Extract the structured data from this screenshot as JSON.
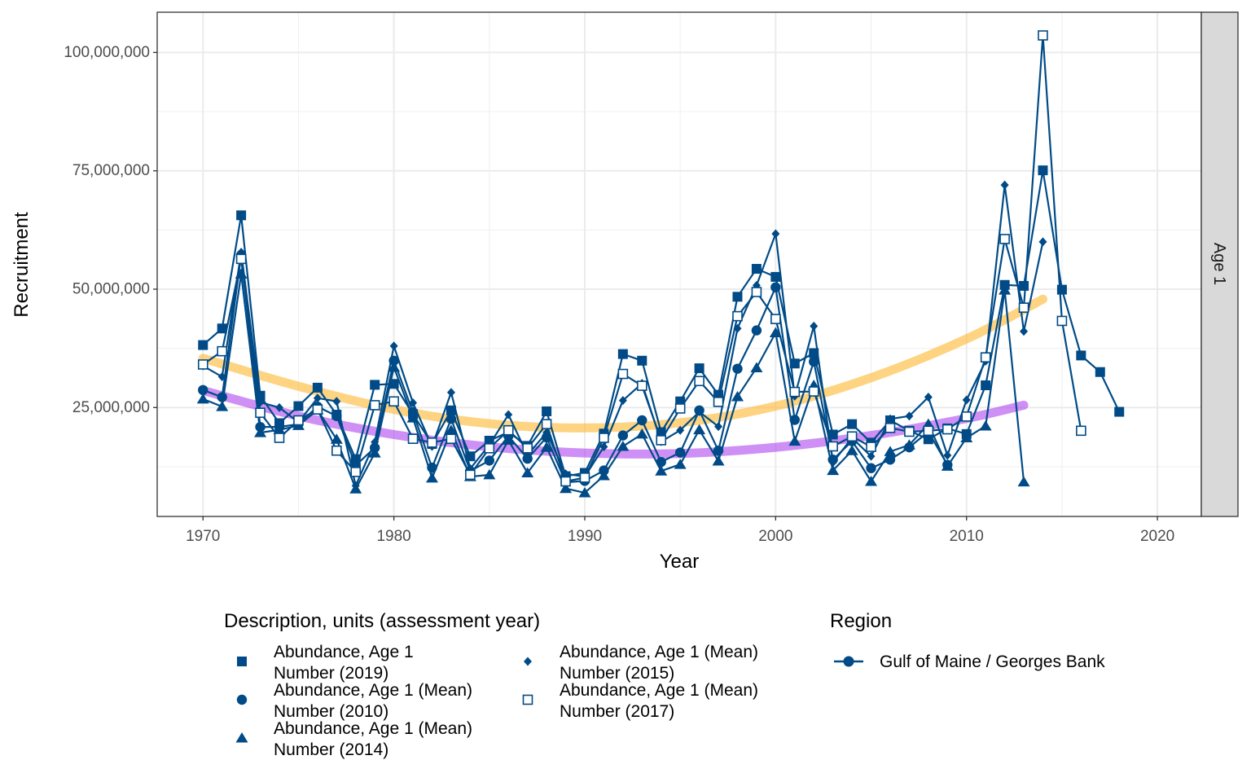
{
  "chart_data": {
    "type": "line",
    "xlabel": "Year",
    "ylabel": "Recruitment",
    "facet_label": "Age 1",
    "xlim": [
      1967.6,
      2022.3
    ],
    "ylim": [
      2000000,
      108500000
    ],
    "x_ticks": [
      1970,
      1980,
      1990,
      2000,
      2010,
      2020
    ],
    "x_tick_labels": [
      "1970",
      "1980",
      "1990",
      "2000",
      "2010",
      "2020"
    ],
    "y_ticks": [
      25000000,
      50000000,
      75000000,
      100000000
    ],
    "y_tick_labels": [
      "25,000,000",
      "50,000,000",
      "75,000,000",
      "100,000,000"
    ],
    "grid": true,
    "line_color": "#004B87",
    "series": [
      {
        "name": "Abundance, Age 1 Number (2019)",
        "marker": "square-filled",
        "x": [
          1970,
          1971,
          1972,
          1973,
          1974,
          1975,
          1976,
          1977,
          1978,
          1979,
          1980,
          1981,
          1982,
          1983,
          1984,
          1985,
          1986,
          1987,
          1988,
          1989,
          1990,
          1991,
          1992,
          1993,
          1994,
          1995,
          1996,
          1997,
          1998,
          1999,
          2000,
          2001,
          2002,
          2003,
          2004,
          2005,
          2006,
          2007,
          2008,
          2009,
          2010,
          2011,
          2012,
          2013,
          2014,
          2015,
          2016,
          2017,
          2018
        ],
        "y": [
          38200000,
          41700000,
          65600000,
          27500000,
          21700000,
          25300000,
          29200000,
          23500000,
          14100000,
          29800000,
          30000000,
          23600000,
          17300000,
          24400000,
          14700000,
          18000000,
          19800000,
          16900000,
          24200000,
          10500000,
          11200000,
          19500000,
          36300000,
          34900000,
          19800000,
          26300000,
          33300000,
          27700000,
          48400000,
          54300000,
          52600000,
          34300000,
          36500000,
          19300000,
          21500000,
          17600000,
          22300000,
          20100000,
          18300000,
          20600000,
          19400000,
          29700000,
          50900000,
          50700000,
          75100000,
          49900000,
          36000000,
          32500000,
          24100000
        ]
      },
      {
        "name": "Abundance, Age 1 (Mean) Number (2010)",
        "marker": "circle-filled",
        "x": [
          1970,
          1971,
          1972,
          1973,
          1974,
          1975,
          1976,
          1977,
          1978,
          1979,
          1980,
          1981,
          1982,
          1983,
          1984,
          1985,
          1986,
          1987,
          1988,
          1989,
          1990,
          1991,
          1992,
          1993,
          1994,
          1995,
          1996,
          1997,
          1998,
          1999,
          2000,
          2001,
          2002,
          2003,
          2004,
          2005,
          2006,
          2007,
          2008,
          2009
        ],
        "y": [
          28700000,
          27200000,
          57200000,
          20900000,
          20900000,
          21500000,
          25200000,
          23200000,
          12800000,
          16500000,
          34900000,
          24000000,
          12300000,
          22600000,
          11600000,
          13800000,
          19000000,
          14200000,
          18700000,
          9200000,
          9500000,
          11700000,
          19100000,
          22300000,
          13500000,
          15500000,
          24400000,
          15900000,
          33200000,
          41300000,
          50400000,
          22400000,
          34700000,
          14000000,
          17900000,
          12200000,
          14000000,
          16600000,
          19900000,
          12900000
        ]
      },
      {
        "name": "Abundance, Age 1 (Mean) Number (2014)",
        "marker": "triangle-filled",
        "x": [
          1970,
          1971,
          1972,
          1973,
          1974,
          1975,
          1976,
          1977,
          1978,
          1979,
          1980,
          1981,
          1982,
          1983,
          1984,
          1985,
          1986,
          1987,
          1988,
          1989,
          1990,
          1991,
          1992,
          1993,
          1994,
          1995,
          1996,
          1997,
          1998,
          1999,
          2000,
          2001,
          2002,
          2003,
          2004,
          2005,
          2006,
          2007,
          2008,
          2009,
          2010,
          2011,
          2012,
          2013
        ],
        "y": [
          26800000,
          25200000,
          53200000,
          19700000,
          20300000,
          21200000,
          24500000,
          18300000,
          7800000,
          15400000,
          33500000,
          22800000,
          10100000,
          20200000,
          10400000,
          10800000,
          18100000,
          11200000,
          16600000,
          7900000,
          7000000,
          10600000,
          16800000,
          19400000,
          11600000,
          13000000,
          20300000,
          13700000,
          27300000,
          33400000,
          40800000,
          17900000,
          29700000,
          11700000,
          15900000,
          9400000,
          15700000,
          17100000,
          21500000,
          12600000,
          18600000,
          21100000,
          49800000,
          9300000
        ]
      },
      {
        "name": "Abundance, Age 1 (Mean) Number (2015)",
        "marker": "diamond-filled",
        "x": [
          1970,
          1971,
          1972,
          1973,
          1974,
          1975,
          1976,
          1977,
          1978,
          1979,
          1980,
          1981,
          1982,
          1983,
          1984,
          1985,
          1986,
          1987,
          1988,
          1989,
          1990,
          1991,
          1992,
          1993,
          1994,
          1995,
          1996,
          1997,
          1998,
          1999,
          2000,
          2001,
          2002,
          2003,
          2004,
          2005,
          2006,
          2007,
          2008,
          2009,
          2010,
          2011,
          2012,
          2013,
          2014
        ],
        "y": [
          33800000,
          31500000,
          57800000,
          26100000,
          25000000,
          21900000,
          27000000,
          26300000,
          8500000,
          17700000,
          38000000,
          26000000,
          16800000,
          28200000,
          12100000,
          17100000,
          23500000,
          15000000,
          19700000,
          11000000,
          10400000,
          16700000,
          26500000,
          30100000,
          17800000,
          20200000,
          24100000,
          21000000,
          41700000,
          50800000,
          61700000,
          27400000,
          42200000,
          13400000,
          18600000,
          14700000,
          22600000,
          23200000,
          27200000,
          14900000,
          26600000,
          34800000,
          72000000,
          41100000,
          60000000
        ]
      },
      {
        "name": "Abundance, Age 1 (Mean) Number (2017)",
        "marker": "square-open",
        "x": [
          1970,
          1971,
          1972,
          1973,
          1974,
          1975,
          1976,
          1977,
          1978,
          1979,
          1980,
          1981,
          1982,
          1983,
          1984,
          1985,
          1986,
          1987,
          1988,
          1989,
          1990,
          1991,
          1992,
          1993,
          1994,
          1995,
          1996,
          1997,
          1998,
          1999,
          2000,
          2001,
          2002,
          2003,
          2004,
          2005,
          2006,
          2007,
          2008,
          2009,
          2010,
          2011,
          2012,
          2013,
          2014,
          2015,
          2016
        ],
        "y": [
          34100000,
          36900000,
          56400000,
          23900000,
          18600000,
          22300000,
          24600000,
          15900000,
          11400000,
          25500000,
          26300000,
          18400000,
          17600000,
          18400000,
          10800000,
          16400000,
          20200000,
          16400000,
          21500000,
          9400000,
          10200000,
          18600000,
          32100000,
          29600000,
          18100000,
          24800000,
          30600000,
          26200000,
          44300000,
          49400000,
          43700000,
          28300000,
          28400000,
          16800000,
          18900000,
          16700000,
          20700000,
          19900000,
          20100000,
          20400000,
          23100000,
          35600000,
          60600000,
          46100000,
          103600000,
          43300000,
          20100000
        ]
      }
    ],
    "trend_lines": [
      {
        "color": "#FDB833",
        "x": [
          1970,
          1975,
          1980,
          1985,
          1990,
          1995,
          2000,
          2005,
          2010,
          2014
        ],
        "y": [
          35400000,
          29500000,
          24600000,
          21600000,
          20700000,
          21800000,
          25300000,
          31300000,
          39500000,
          47900000
        ]
      },
      {
        "color": "#B14CF0",
        "x": [
          1970,
          1975,
          1980,
          1985,
          1990,
          1995,
          2000,
          2005,
          2010,
          2013
        ],
        "y": [
          28600000,
          23200000,
          19300000,
          16700000,
          15400000,
          15300000,
          16600000,
          19100000,
          22700000,
          25500000
        ]
      }
    ]
  },
  "legend": {
    "description_title": "Description, units (assessment year)",
    "description_items": [
      {
        "marker": "square-filled",
        "line1": "Abundance, Age 1",
        "line2": "Number (2019)"
      },
      {
        "marker": "circle-filled",
        "line1": "Abundance, Age 1 (Mean)",
        "line2": "Number (2010)"
      },
      {
        "marker": "triangle-filled",
        "line1": "Abundance, Age 1 (Mean)",
        "line2": "Number (2014)"
      },
      {
        "marker": "diamond-filled",
        "line1": "Abundance, Age 1 (Mean)",
        "line2": "Number (2015)"
      },
      {
        "marker": "square-open",
        "line1": "Abundance, Age 1 (Mean)",
        "line2": "Number (2017)"
      }
    ],
    "region_title": "Region",
    "region_items": [
      {
        "label": "Gulf of Maine / Georges Bank"
      }
    ]
  }
}
